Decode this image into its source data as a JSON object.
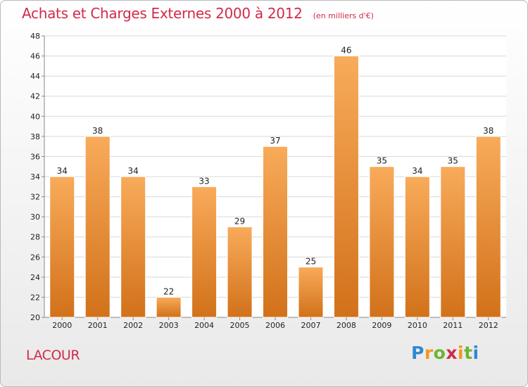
{
  "chart_data": {
    "type": "bar",
    "title": "Achats et Charges Externes 2000 à 2012",
    "subtitle": "(en milliers d'€)",
    "categories": [
      "2000",
      "2001",
      "2002",
      "2003",
      "2004",
      "2005",
      "2006",
      "2007",
      "2008",
      "2009",
      "2010",
      "2011",
      "2012"
    ],
    "values": [
      34,
      38,
      34,
      22,
      33,
      29,
      37,
      25,
      46,
      35,
      34,
      35,
      38
    ],
    "xlabel": "",
    "ylabel": "",
    "ylim": [
      20,
      48
    ],
    "yticks": [
      20,
      22,
      24,
      26,
      28,
      30,
      32,
      34,
      36,
      38,
      40,
      42,
      44,
      46,
      48
    ],
    "grid": true,
    "bar_color": "#f0922e",
    "bar_color_light": "#f8ab5a",
    "bar_color_dark": "#d2711a"
  },
  "footer": {
    "place": "LACOUR",
    "brand_letters": [
      "P",
      "r",
      "o",
      "x",
      "i",
      "t",
      "i"
    ]
  },
  "colors": {
    "title": "#d22a4a",
    "grid": "#d8d8d8",
    "axis": "#888888"
  }
}
